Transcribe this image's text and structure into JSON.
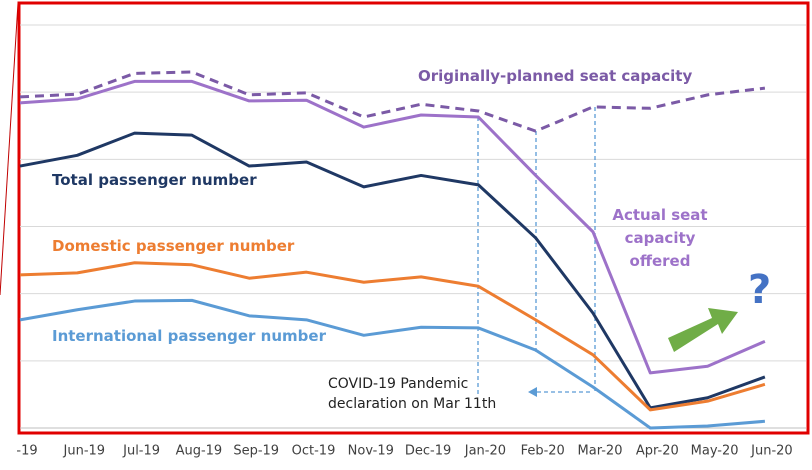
{
  "chart_data": {
    "type": "line",
    "categories": [
      "-19",
      "Jun-19",
      "Jul-19",
      "Aug-19",
      "Sep-19",
      "Oct-19",
      "Nov-19",
      "Dec-19",
      "Jan-20",
      "Feb-20",
      "Mar-20",
      "Apr-20",
      "May-20",
      "Jun-20"
    ],
    "ylim": [
      0,
      6
    ],
    "yticks": [
      0,
      1,
      2,
      3,
      4,
      5,
      6
    ],
    "grid": true,
    "series": [
      {
        "name": "Originally-planned seat capacity",
        "color": "#7b5aa6",
        "dashed": true,
        "values": [
          4.93,
          4.97,
          5.28,
          5.3,
          4.96,
          4.99,
          4.63,
          4.82,
          4.72,
          4.42,
          4.78,
          4.76,
          4.96,
          5.06
        ]
      },
      {
        "name": "Actual seat capacity offered",
        "color": "#9d72c9",
        "values": [
          4.84,
          4.9,
          5.16,
          5.16,
          4.87,
          4.88,
          4.48,
          4.66,
          4.63,
          3.76,
          2.92,
          0.82,
          0.92,
          1.29
        ]
      },
      {
        "name": "Total passenger number",
        "color": "#1f3864",
        "values": [
          3.9,
          4.06,
          4.39,
          4.36,
          3.9,
          3.96,
          3.59,
          3.76,
          3.62,
          2.83,
          1.71,
          0.3,
          0.45,
          0.76
        ]
      },
      {
        "name": "Domestic passenger number",
        "color": "#ed7d31",
        "values": [
          2.28,
          2.31,
          2.46,
          2.43,
          2.23,
          2.32,
          2.17,
          2.25,
          2.11,
          1.61,
          1.09,
          0.27,
          0.4,
          0.65
        ]
      },
      {
        "name": "International passenger number",
        "color": "#5b9bd5",
        "values": [
          1.61,
          1.76,
          1.89,
          1.9,
          1.67,
          1.61,
          1.38,
          1.5,
          1.49,
          1.16,
          0.61,
          0,
          0.03,
          0.1
        ]
      }
    ],
    "annotations": [
      "COVID-19 Pandemic declaration on Mar 11th",
      "?"
    ]
  }
}
